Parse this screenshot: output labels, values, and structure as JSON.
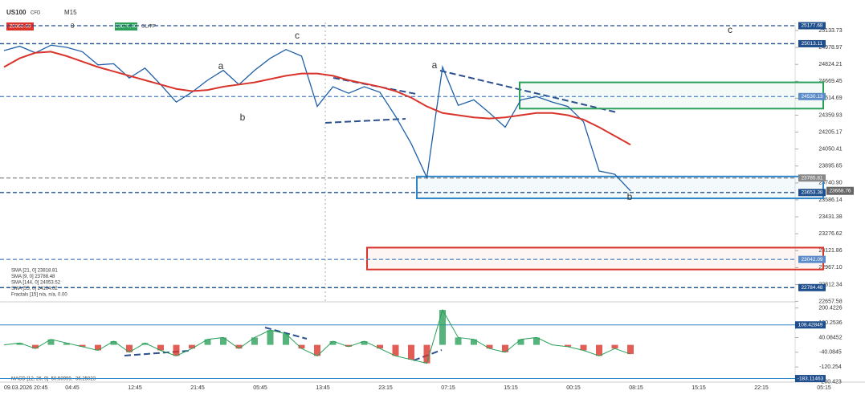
{
  "header": {
    "symbol": "US100",
    "kind": "CFD",
    "timeframe": "M15",
    "sell": "23668.66",
    "buy": "23670.46",
    "sltp": "SL/TP",
    "qty": "0"
  },
  "indicators": [
    "SMA [21, 0] 23818.81",
    "SMA [9, 0] 23788.48",
    "SMA [144, 0] 24053.52",
    "SMA [55, 0] 24104.02",
    "Fractals [15] n/a, n/a, 0.00"
  ],
  "macd_label": "MACD [12, 26, 9] -50.50999, -36.25023",
  "annotations": [
    {
      "text": "a",
      "color": "#2aa05a"
    },
    {
      "text": "b",
      "color": "#2aa05a"
    },
    {
      "text": "c",
      "color": "#2aa05a"
    },
    {
      "text": "a",
      "color": "#333"
    },
    {
      "text": "b",
      "color": "#333"
    },
    {
      "text": "c",
      "color": "#333"
    }
  ],
  "chart_data": [
    {
      "type": "line",
      "x_labels": [
        "09.03.2026 20:45",
        "04:45",
        "12:45",
        "21:45",
        "05:45",
        "13:45",
        "23:15",
        "07:15",
        "15:15",
        "00:15",
        "08:15",
        "15:15",
        "22:15",
        "05:15"
      ],
      "ylim": [
        22654.6,
        25207.1
      ],
      "yticks": [
        25133.73,
        24978.97,
        24824.21,
        24669.45,
        24514.69,
        24359.93,
        24205.17,
        24050.41,
        23895.65,
        {
          "value": 23740.9,
          "label": "23740.90"
        },
        23586.14,
        23431.38,
        23276.62,
        23121.86,
        {
          "value": 22967.1,
          "label": "22967.10"
        },
        22812.34,
        22657.58
      ],
      "series": [
        {
          "color": "#1f5fa8",
          "values": [
            24950,
            24990,
            24930,
            25000,
            24980,
            24940,
            24820,
            24830,
            24700,
            24790,
            24640,
            24480,
            24570,
            24680,
            24770,
            24640,
            24770,
            24880,
            24960,
            24900,
            24440,
            24620,
            24560,
            24620,
            24570,
            24350,
            24100,
            23790,
            24800,
            24450,
            24500,
            24380,
            24250,
            24500,
            24530,
            24480,
            24440,
            24300,
            23850,
            23820,
            23668
          ]
        },
        {
          "name": "SMA [144, 0] 24053.52",
          "color": "#d9342b",
          "values": [
            24800,
            24880,
            24930,
            24940,
            24900,
            24850,
            24800,
            24760,
            24720,
            24680,
            24640,
            24600,
            24580,
            24590,
            24620,
            24640,
            24660,
            24690,
            24720,
            24740,
            24740,
            24720,
            24680,
            24650,
            24620,
            24580,
            24520,
            24440,
            24380,
            24360,
            24340,
            24330,
            24340,
            24360,
            24380,
            24380,
            24360,
            24320,
            24250,
            24170,
            24090
          ]
        }
      ],
      "levels": [
        {
          "value": 25177.68,
          "color": "#1f4e8c"
        },
        {
          "value": 25013.11,
          "color": "#1f4e8c"
        },
        {
          "value": 24530.13,
          "color": "#5b8bc9"
        },
        {
          "value": 23785.81,
          "color": "#888"
        },
        {
          "value": 23653.38,
          "color": "#1f4e8c"
        },
        {
          "value": 23042.09,
          "color": "#5b8bc9"
        },
        {
          "value": 22784.48,
          "color": "#1f4e8c"
        }
      ],
      "last_price": 23668.76,
      "zones": [
        {
          "from": 24660,
          "to": 24420,
          "color": "#2aa05a"
        },
        {
          "from": 23800,
          "to": 23600,
          "color": "#2f86c8"
        },
        {
          "from": 23150,
          "to": 22950,
          "color": "#d9342b"
        }
      ]
    },
    {
      "type": "macd",
      "ylim": [
        -202.5,
        234
      ],
      "yticks": [
        200.4226,
        120.2536,
        40.08452,
        -40.0845,
        -120.254,
        -200.423
      ],
      "values": [
        0,
        10,
        -20,
        30,
        10,
        -10,
        -30,
        20,
        -40,
        10,
        -30,
        -60,
        -20,
        30,
        40,
        -20,
        40,
        80,
        60,
        -20,
        -60,
        20,
        -10,
        20,
        -20,
        -60,
        -80,
        -100,
        190,
        40,
        30,
        -20,
        -40,
        30,
        40,
        0,
        -10,
        -30,
        -60,
        -20,
        -50
      ],
      "levels": [
        108.42849,
        -183.11463
      ]
    }
  ]
}
